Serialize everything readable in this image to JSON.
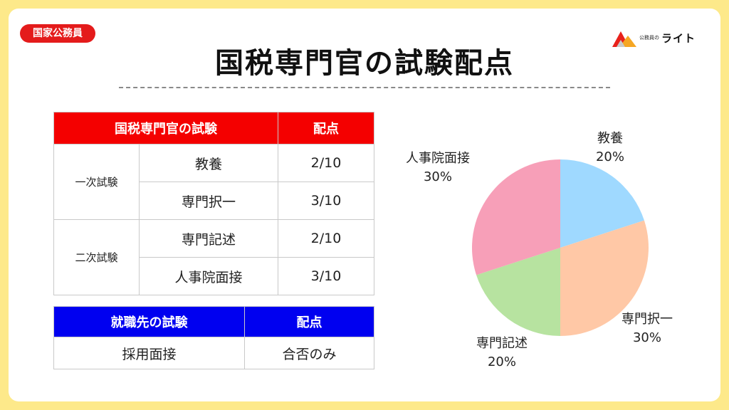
{
  "badge": "国家公務員",
  "logo": {
    "small": "公務員の",
    "big": "ライト"
  },
  "title": "国税専門官の試験配点",
  "table1": {
    "headers": [
      "国税専門官の試験",
      "配点"
    ],
    "groups": [
      {
        "stage": "一次試験",
        "rows": [
          {
            "subject": "教養",
            "score": "2/10"
          },
          {
            "subject": "専門択一",
            "score": "3/10"
          }
        ]
      },
      {
        "stage": "二次試験",
        "rows": [
          {
            "subject": "専門記述",
            "score": "2/10"
          },
          {
            "subject": "人事院面接",
            "score": "3/10"
          }
        ]
      }
    ]
  },
  "table2": {
    "headers": [
      "就職先の試験",
      "配点"
    ],
    "rows": [
      {
        "subject": "採用面接",
        "score": "合否のみ"
      }
    ]
  },
  "chart_data": {
    "type": "pie",
    "categories": [
      "教養",
      "専門択一",
      "専門記述",
      "人事院面接"
    ],
    "values": [
      20,
      30,
      20,
      30
    ],
    "labels": [
      "20%",
      "30%",
      "20%",
      "30%"
    ],
    "colors": [
      "#9fd9ff",
      "#ffc8a6",
      "#b7e3a0",
      "#f79fb8"
    ]
  }
}
